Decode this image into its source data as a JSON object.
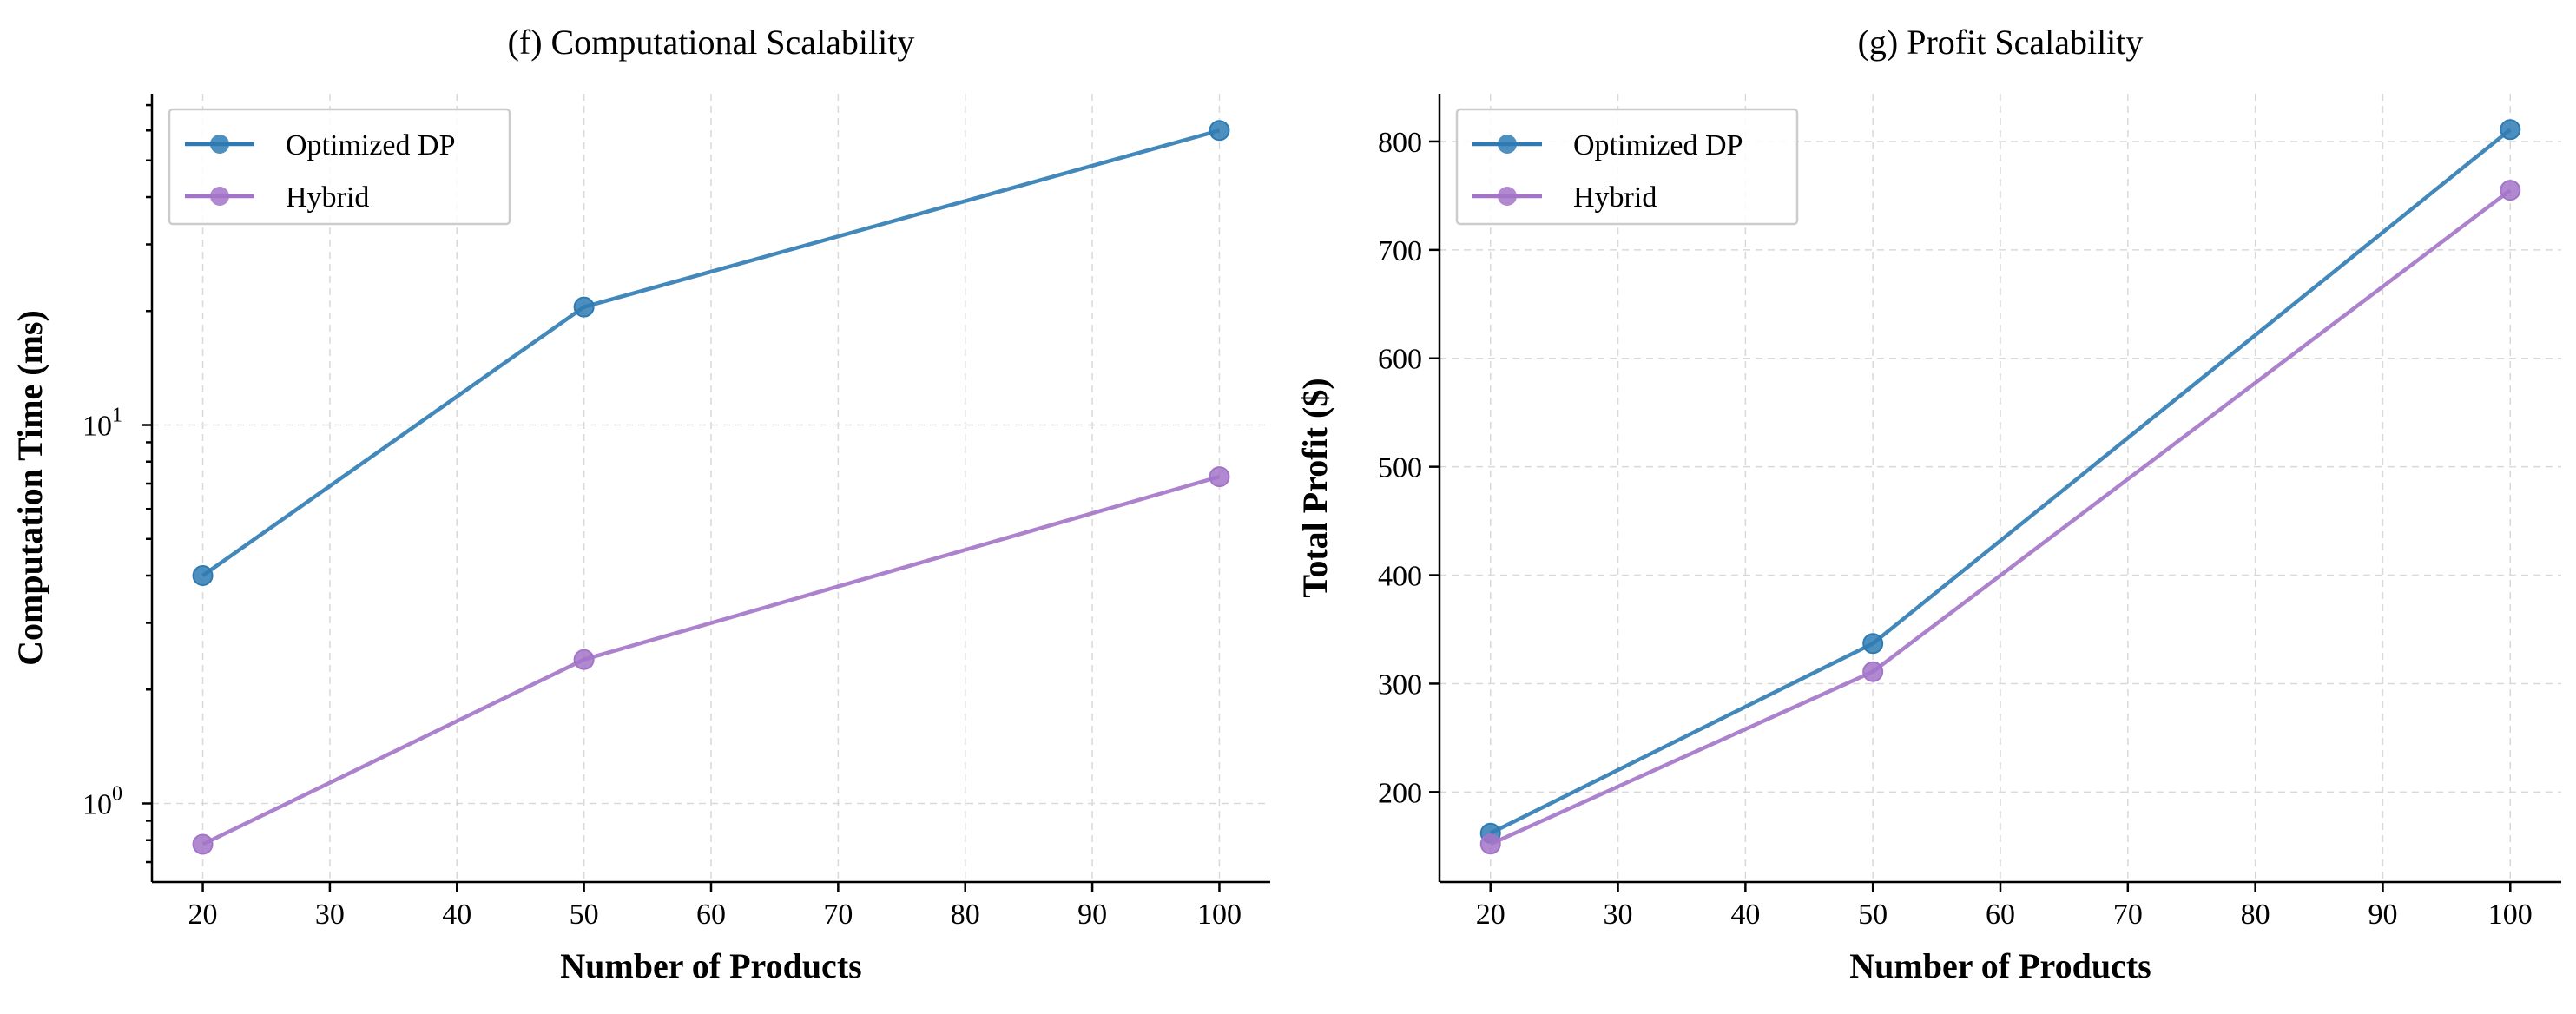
{
  "chart_data": [
    {
      "type": "line",
      "title": "(f) Computational Scalability",
      "xlabel": "Number of Products",
      "ylabel": "Computation Time (ms)",
      "yscale": "log",
      "x": [
        20,
        50,
        100
      ],
      "xlim": [
        16,
        104
      ],
      "ylim": [
        0.62,
        75
      ],
      "xticks": [
        20,
        30,
        40,
        50,
        60,
        70,
        80,
        90,
        100
      ],
      "yticks_major": [
        {
          "value": 1,
          "base": "10",
          "exp": "0"
        },
        {
          "value": 10,
          "base": "10",
          "exp": "1"
        }
      ],
      "grid": true,
      "legend_position": "upper-left",
      "series": [
        {
          "name": "Optimized DP",
          "color": "#2e7bb3",
          "values": [
            4.0,
            20.5,
            60.0
          ]
        },
        {
          "name": "Hybrid",
          "color": "#a374c8",
          "values": [
            0.78,
            2.4,
            7.3
          ]
        }
      ]
    },
    {
      "type": "line",
      "title": "(g) Profit Scalability",
      "xlabel": "Number of Products",
      "ylabel": "Total Profit ($)",
      "yscale": "linear",
      "x": [
        20,
        50,
        100
      ],
      "xlim": [
        16,
        104
      ],
      "ylim": [
        117,
        844
      ],
      "xticks": [
        20,
        30,
        40,
        50,
        60,
        70,
        80,
        90,
        100
      ],
      "yticks": [
        200,
        300,
        400,
        500,
        600,
        700,
        800
      ],
      "grid": true,
      "legend_position": "upper-left",
      "series": [
        {
          "name": "Optimized DP",
          "color": "#2e7bb3",
          "values": [
            162,
            337,
            811
          ]
        },
        {
          "name": "Hybrid",
          "color": "#a374c8",
          "values": [
            152,
            311,
            755
          ]
        }
      ]
    }
  ]
}
